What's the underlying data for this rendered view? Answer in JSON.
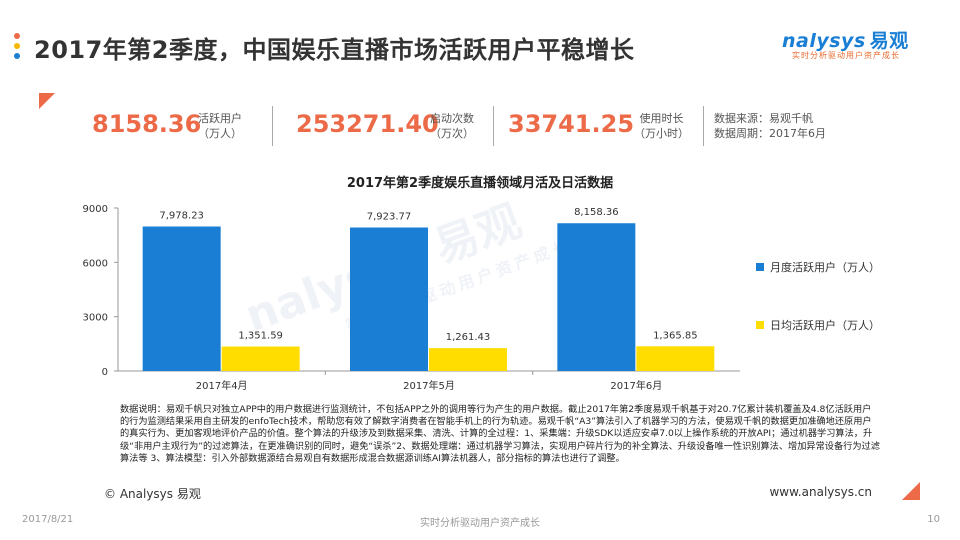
{
  "header": {
    "title": "2017年第2季度，中国娱乐直播市场活跃用户平稳增长",
    "dot_colors": [
      "#ec6a47",
      "#f5b800",
      "#1a7fd4"
    ]
  },
  "logo": {
    "brand": "nalysys",
    "brand_cn": "易观",
    "tagline": "实时分析驱动用户资产成长"
  },
  "kpis": [
    {
      "value": "8158.36",
      "label1": "活跃用户",
      "label2": "（万人）"
    },
    {
      "value": "253271.40",
      "label1": "启动次数",
      "label2": "（万次）"
    },
    {
      "value": "33741.25",
      "label1": "使用时长",
      "label2": "（万小时）"
    }
  ],
  "source": {
    "line1": "数据来源：易观千帆",
    "line2": "数据周期：2017年6月"
  },
  "watermark": {
    "main": "nalysys 易观",
    "sub": "实时分析驱动用户资产成长"
  },
  "chart_data": {
    "type": "bar",
    "title": "2017年第2季度娱乐直播领域月活及日活数据",
    "categories": [
      "2017年4月",
      "2017年5月",
      "2017年6月"
    ],
    "series": [
      {
        "name": "月度活跃用户（万人）",
        "values": [
          7978.23,
          7923.77,
          8158.36
        ],
        "labels": [
          "7,978.23",
          "7,923.77",
          "8,158.36"
        ],
        "color": "#1a7fd4"
      },
      {
        "name": "日均活跃用户（万人）",
        "values": [
          1351.59,
          1261.43,
          1365.85
        ],
        "labels": [
          "1,351.59",
          "1,261.43",
          "1,365.85"
        ],
        "color": "#ffdd00"
      }
    ],
    "yticks": [
      0,
      3000,
      6000,
      9000
    ],
    "ylim": [
      0,
      9000
    ],
    "grid": false,
    "legend": "right"
  },
  "note": "数据说明：易观千帆只对独立APP中的用户数据进行监测统计，不包括APP之外的调用等行为产生的用户数据。截止2017年第2季度易观千帆基于对20.7亿累计装机覆盖及4.8亿活跃用户的行为监测结果采用自主研发的enfoTech技术，帮助您有效了解数字消费者在智能手机上的行为轨迹。易观千帆“A3”算法引入了机器学习的方法，使易观千帆的数据更加准确地还原用户的真实行为、更加客观地评价产品的价值。整个算法的升级涉及到数据采集、清洗、计算的全过程：1、采集端：升级SDK以适应安卓7.0以上操作系统的开放API；通过机器学习算法，升级“非用户主观行为”的过滤算法，在更准确识别的同时，避免“误杀”2、数据处理端：通过机器学习算法，实现用户碎片行为的补全算法、升级设备唯一性识别算法、增加异常设备行为过滤算法等 3、算法模型：引入外部数据源结合易观自有数据形成混合数据源训练AI算法机器人，部分指标的算法也进行了调整。",
  "footer": {
    "copyright": "© Analysys 易观",
    "website": "www.analysys.cn",
    "date": "2017/8/21",
    "slogan": "实时分析驱动用户资产成长",
    "page": "10"
  }
}
